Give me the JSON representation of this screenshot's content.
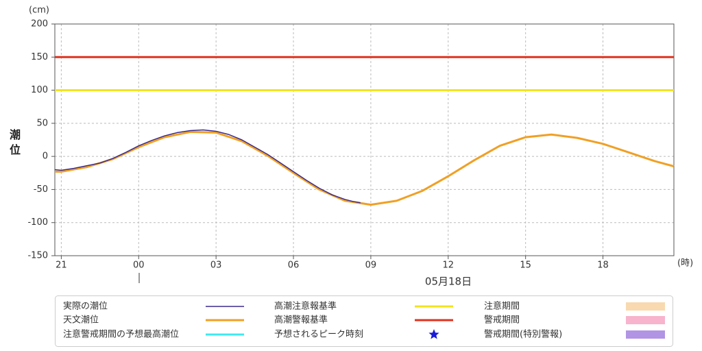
{
  "chart_data": {
    "type": "line",
    "y_unit": "(cm)",
    "y_label": "潮位",
    "x_unit": "(時)",
    "date_label": "05月18日",
    "xlim": [
      -3.25,
      20.75
    ],
    "xticks": [
      {
        "value": -3,
        "label": "21"
      },
      {
        "value": 0,
        "label": "00"
      },
      {
        "value": 3,
        "label": "03"
      },
      {
        "value": 6,
        "label": "06"
      },
      {
        "value": 9,
        "label": "09"
      },
      12,
      15,
      18
    ],
    "ylim": [
      -150,
      200
    ],
    "yticks": [
      -150,
      -100,
      -50,
      0,
      50,
      100,
      150,
      200
    ],
    "grid": true,
    "series": [
      {
        "name": "実際の潮位",
        "color": "#3b2a8e",
        "width": 1.5,
        "x": [
          -3.25,
          -3,
          -2.5,
          -2,
          -1.5,
          -1,
          -0.5,
          0,
          0.5,
          1,
          1.5,
          2,
          2.5,
          3,
          3.5,
          4,
          4.5,
          5,
          5.5,
          6,
          6.5,
          7,
          7.5,
          8,
          8.3,
          8.6
        ],
        "values": [
          -20,
          -21,
          -18,
          -14,
          -10,
          -3,
          6,
          16,
          24,
          31,
          36,
          39,
          40,
          38,
          33,
          25,
          14,
          3,
          -10,
          -23,
          -36,
          -48,
          -58,
          -65,
          -68,
          -70
        ]
      },
      {
        "name": "天文潮位",
        "color": "#f0a024",
        "width": 3,
        "x": [
          -3.25,
          -3,
          -2,
          -1,
          0,
          1,
          2,
          3,
          4,
          5,
          6,
          7,
          8,
          9,
          10,
          11,
          12,
          13,
          14,
          15,
          16,
          17,
          18,
          19,
          20,
          20.75
        ],
        "values": [
          -23,
          -23,
          -16,
          -4,
          14,
          29,
          37,
          36,
          23,
          1,
          -25,
          -50,
          -67,
          -73,
          -67,
          -52,
          -30,
          -6,
          16,
          29,
          33,
          28,
          19,
          6,
          -7,
          -15
        ]
      },
      {
        "name": "高潮注意報基準",
        "color": "#f3e21e",
        "width": 3,
        "x": [
          -3.25,
          20.75
        ],
        "values": [
          100,
          100
        ]
      },
      {
        "name": "高潮警報基準",
        "color": "#e0321e",
        "width": 3,
        "x": [
          -3.25,
          20.75
        ],
        "values": [
          150,
          150
        ]
      }
    ],
    "other_legend": [
      {
        "label": "注意警戒期間の予想最高潮位",
        "color": "#3ee8f0",
        "shape": "line"
      },
      {
        "label": "予想されるピーク時刻",
        "color": "#1a1ad8",
        "shape": "star"
      },
      {
        "label": "注意期間",
        "color": "#f9d9b0",
        "shape": "rect"
      },
      {
        "label": "警戒期間",
        "color": "#f8b4cc",
        "shape": "rect"
      },
      {
        "label": "警戒期間(特別警報)",
        "color": "#b294e4",
        "shape": "rect"
      }
    ]
  }
}
